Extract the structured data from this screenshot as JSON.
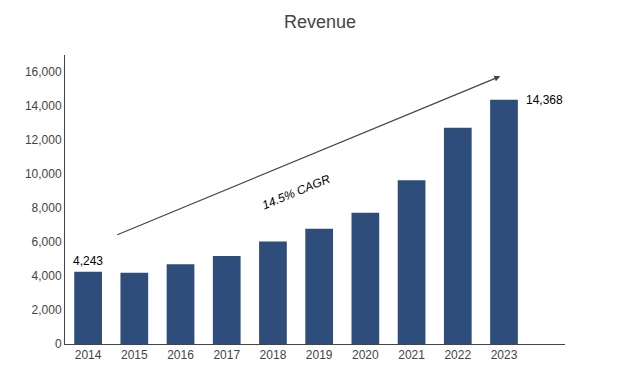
{
  "chart_data": {
    "type": "bar",
    "title": "Revenue",
    "categories": [
      "2014",
      "2015",
      "2016",
      "2017",
      "2018",
      "2019",
      "2020",
      "2021",
      "2022",
      "2023"
    ],
    "values": [
      4243,
      4192,
      4694,
      5177,
      6030,
      6784,
      7722,
      9633,
      12726,
      14368
    ],
    "value_labels": [
      "4,243",
      null,
      null,
      null,
      null,
      null,
      null,
      null,
      null,
      "14,368"
    ],
    "color": "#2E4D7B",
    "ylim": [
      0,
      17000
    ],
    "yticks": [
      0,
      {
        "value": 2000,
        "label": "2,000"
      },
      {
        "value": 4000,
        "label": "4,000"
      },
      {
        "value": 6000,
        "label": "6,000"
      },
      {
        "value": 8000,
        "label": "8,000"
      },
      {
        "value": 10000,
        "label": "10,000"
      },
      {
        "value": 12000,
        "label": "12,000"
      },
      {
        "value": 14000,
        "label": "14,000"
      },
      {
        "value": 16000,
        "label": "16,000"
      }
    ],
    "annotations": [
      "14.5% CAGR"
    ],
    "grid": false
  }
}
